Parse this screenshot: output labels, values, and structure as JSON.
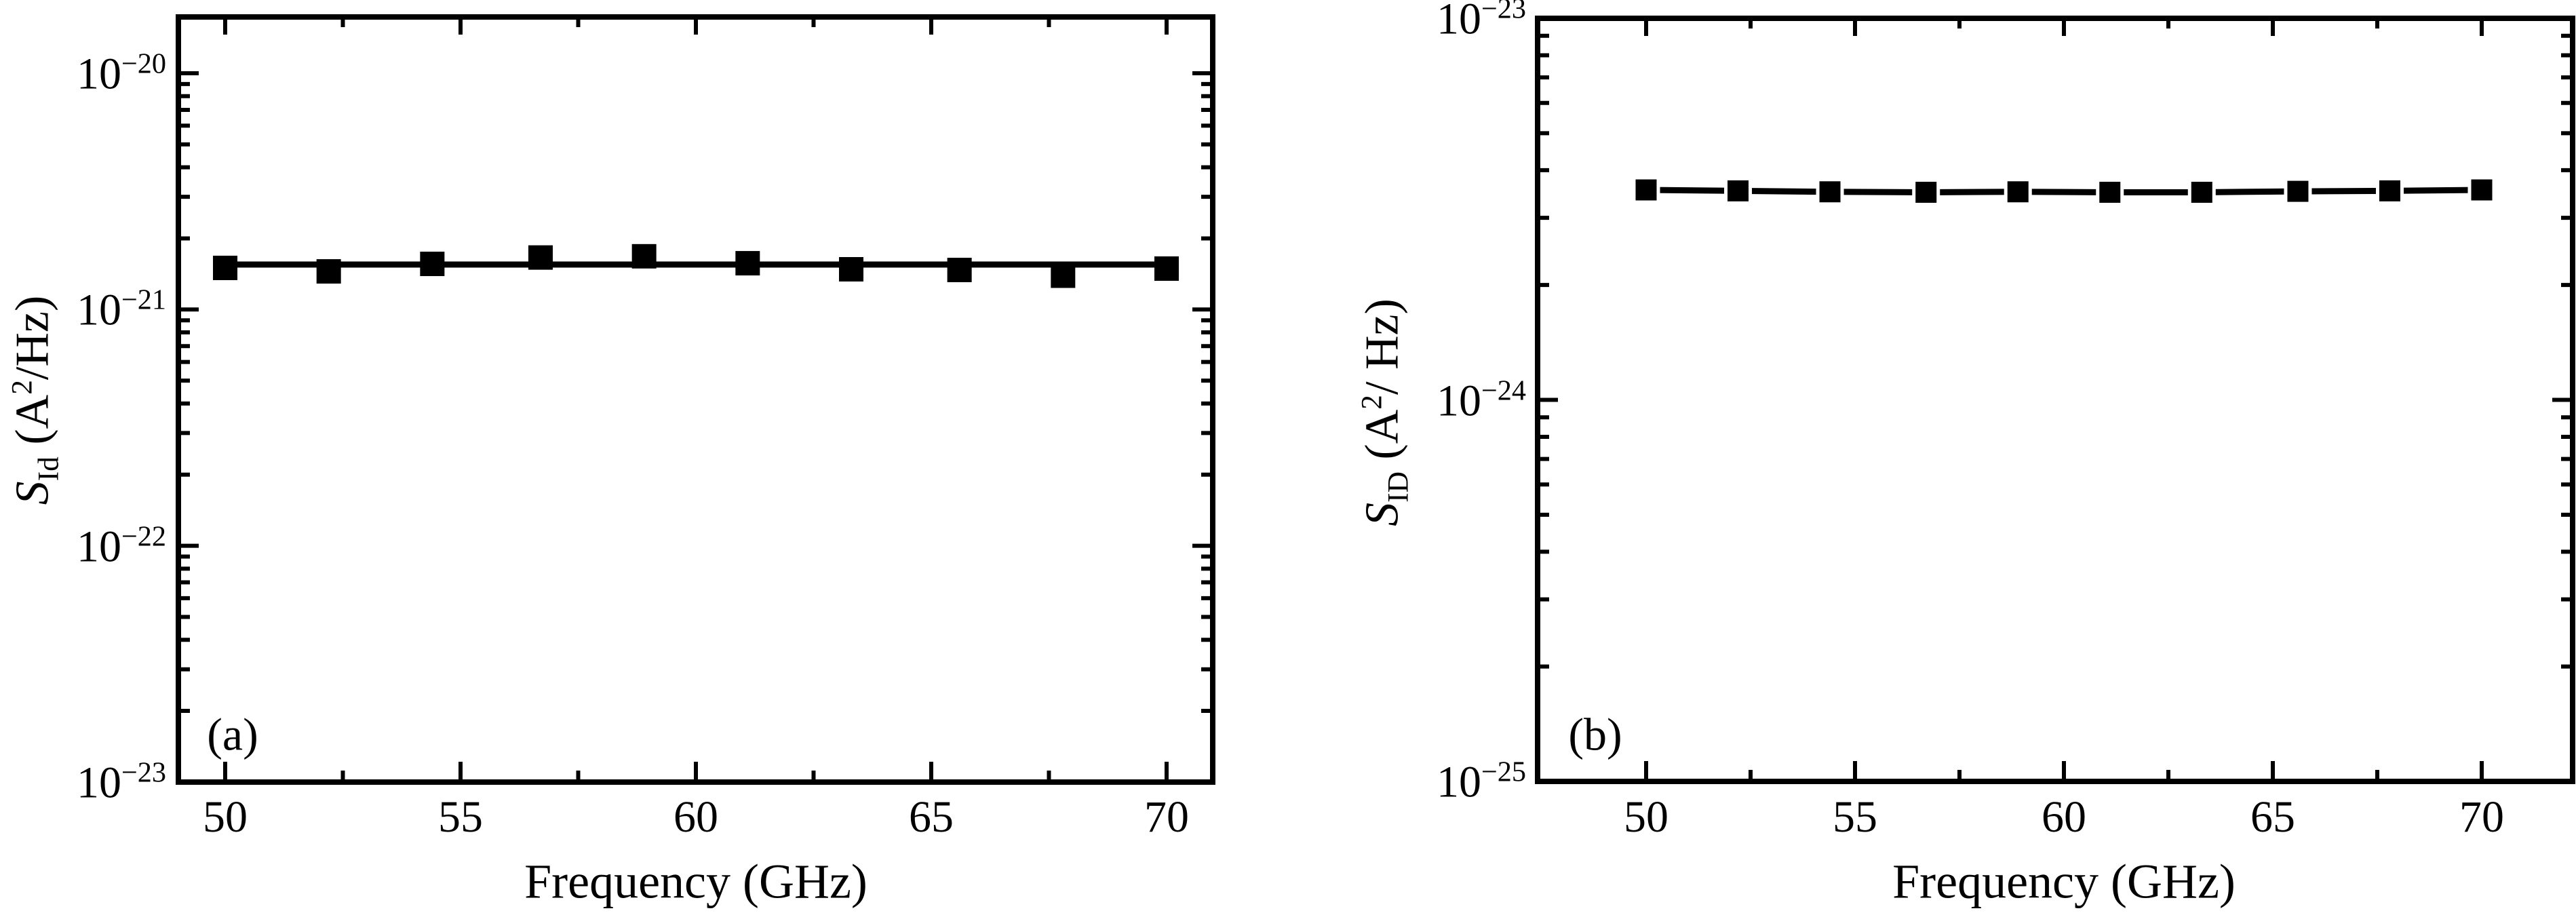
{
  "figure": {
    "background": "#ffffff",
    "ink_color": "#000000"
  },
  "panels": [
    {
      "letter": "(a)",
      "x_label": "Frequency (GHz)",
      "y_label": {
        "symbol": "S",
        "subscript": "Id",
        "unit_open": " (A",
        "unit_exp": "2",
        "unit_close": "/Hz)"
      }
    },
    {
      "letter": "(b)",
      "x_label": "Frequency (GHz)",
      "y_label": {
        "symbol": "S",
        "subscript": "ID",
        "unit_open": " (A",
        "unit_exp": "2",
        "unit_close": "/ Hz)"
      }
    }
  ],
  "chart_data": [
    {
      "type": "scatter",
      "panel": "a",
      "title": "",
      "xlabel": "Frequency (GHz)",
      "ylabel": "S_Id (A^2/Hz)",
      "x_scale": "linear",
      "y_scale": "log",
      "xlim": [
        49,
        71
      ],
      "ylim": [
        1e-23,
        1.75e-20
      ],
      "x": [
        50,
        52.2,
        54.4,
        56.7,
        58.9,
        61.1,
        63.3,
        65.6,
        67.8,
        70
      ],
      "y": [
        1.5e-21,
        1.45e-21,
        1.56e-21,
        1.66e-21,
        1.68e-21,
        1.57e-21,
        1.48e-21,
        1.47e-21,
        1.39e-21,
        1.49e-21
      ],
      "line_mode": "fit",
      "fit_line": {
        "y": 1.55e-21,
        "x_start": 50,
        "x_end": 70
      },
      "marker": "filled-square",
      "grid": false,
      "legend": "none",
      "x_major_ticks": [
        {
          "value": 50,
          "label": "50"
        },
        {
          "value": 55,
          "label": "55"
        },
        {
          "value": 60,
          "label": "60"
        },
        {
          "value": 65,
          "label": "65"
        },
        {
          "value": 70,
          "label": "70"
        }
      ],
      "x_minor_ticks": [
        52.5,
        57.5,
        62.5,
        67.5
      ],
      "y_major_ticks": [
        {
          "value": 1e-20,
          "base": "10",
          "exp": "−20"
        },
        {
          "value": 1e-21,
          "base": "10",
          "exp": "−21"
        },
        {
          "value": 1e-22,
          "base": "10",
          "exp": "−22"
        },
        {
          "value": 1e-23,
          "base": "10",
          "exp": "−23"
        }
      ]
    },
    {
      "type": "line",
      "panel": "b",
      "title": "",
      "xlabel": "Frequency (GHz)",
      "ylabel": "S_ID (A^2/ Hz)",
      "x_scale": "linear",
      "y_scale": "log",
      "xlim": [
        47.4,
        72.5
      ],
      "ylim": [
        1e-25,
        1e-23
      ],
      "x": [
        50,
        52.2,
        54.4,
        56.7,
        58.9,
        61.1,
        63.3,
        65.6,
        67.8,
        70
      ],
      "y": [
        3.55e-24,
        3.53e-24,
        3.51e-24,
        3.5e-24,
        3.51e-24,
        3.5e-24,
        3.5e-24,
        3.52e-24,
        3.53e-24,
        3.55e-24
      ],
      "line_mode": "connect",
      "marker": "filled-square",
      "grid": false,
      "legend": "none",
      "x_major_ticks": [
        {
          "value": 50,
          "label": "50"
        },
        {
          "value": 55,
          "label": "55"
        },
        {
          "value": 60,
          "label": "60"
        },
        {
          "value": 65,
          "label": "65"
        },
        {
          "value": 70,
          "label": "70"
        }
      ],
      "x_minor_ticks": [
        52.5,
        57.5,
        62.5,
        67.5
      ],
      "y_major_ticks": [
        {
          "value": 1e-23,
          "base": "10",
          "exp": "−23"
        },
        {
          "value": 1e-24,
          "base": "10",
          "exp": "−24"
        },
        {
          "value": 1e-25,
          "base": "10",
          "exp": "−25"
        }
      ]
    }
  ]
}
